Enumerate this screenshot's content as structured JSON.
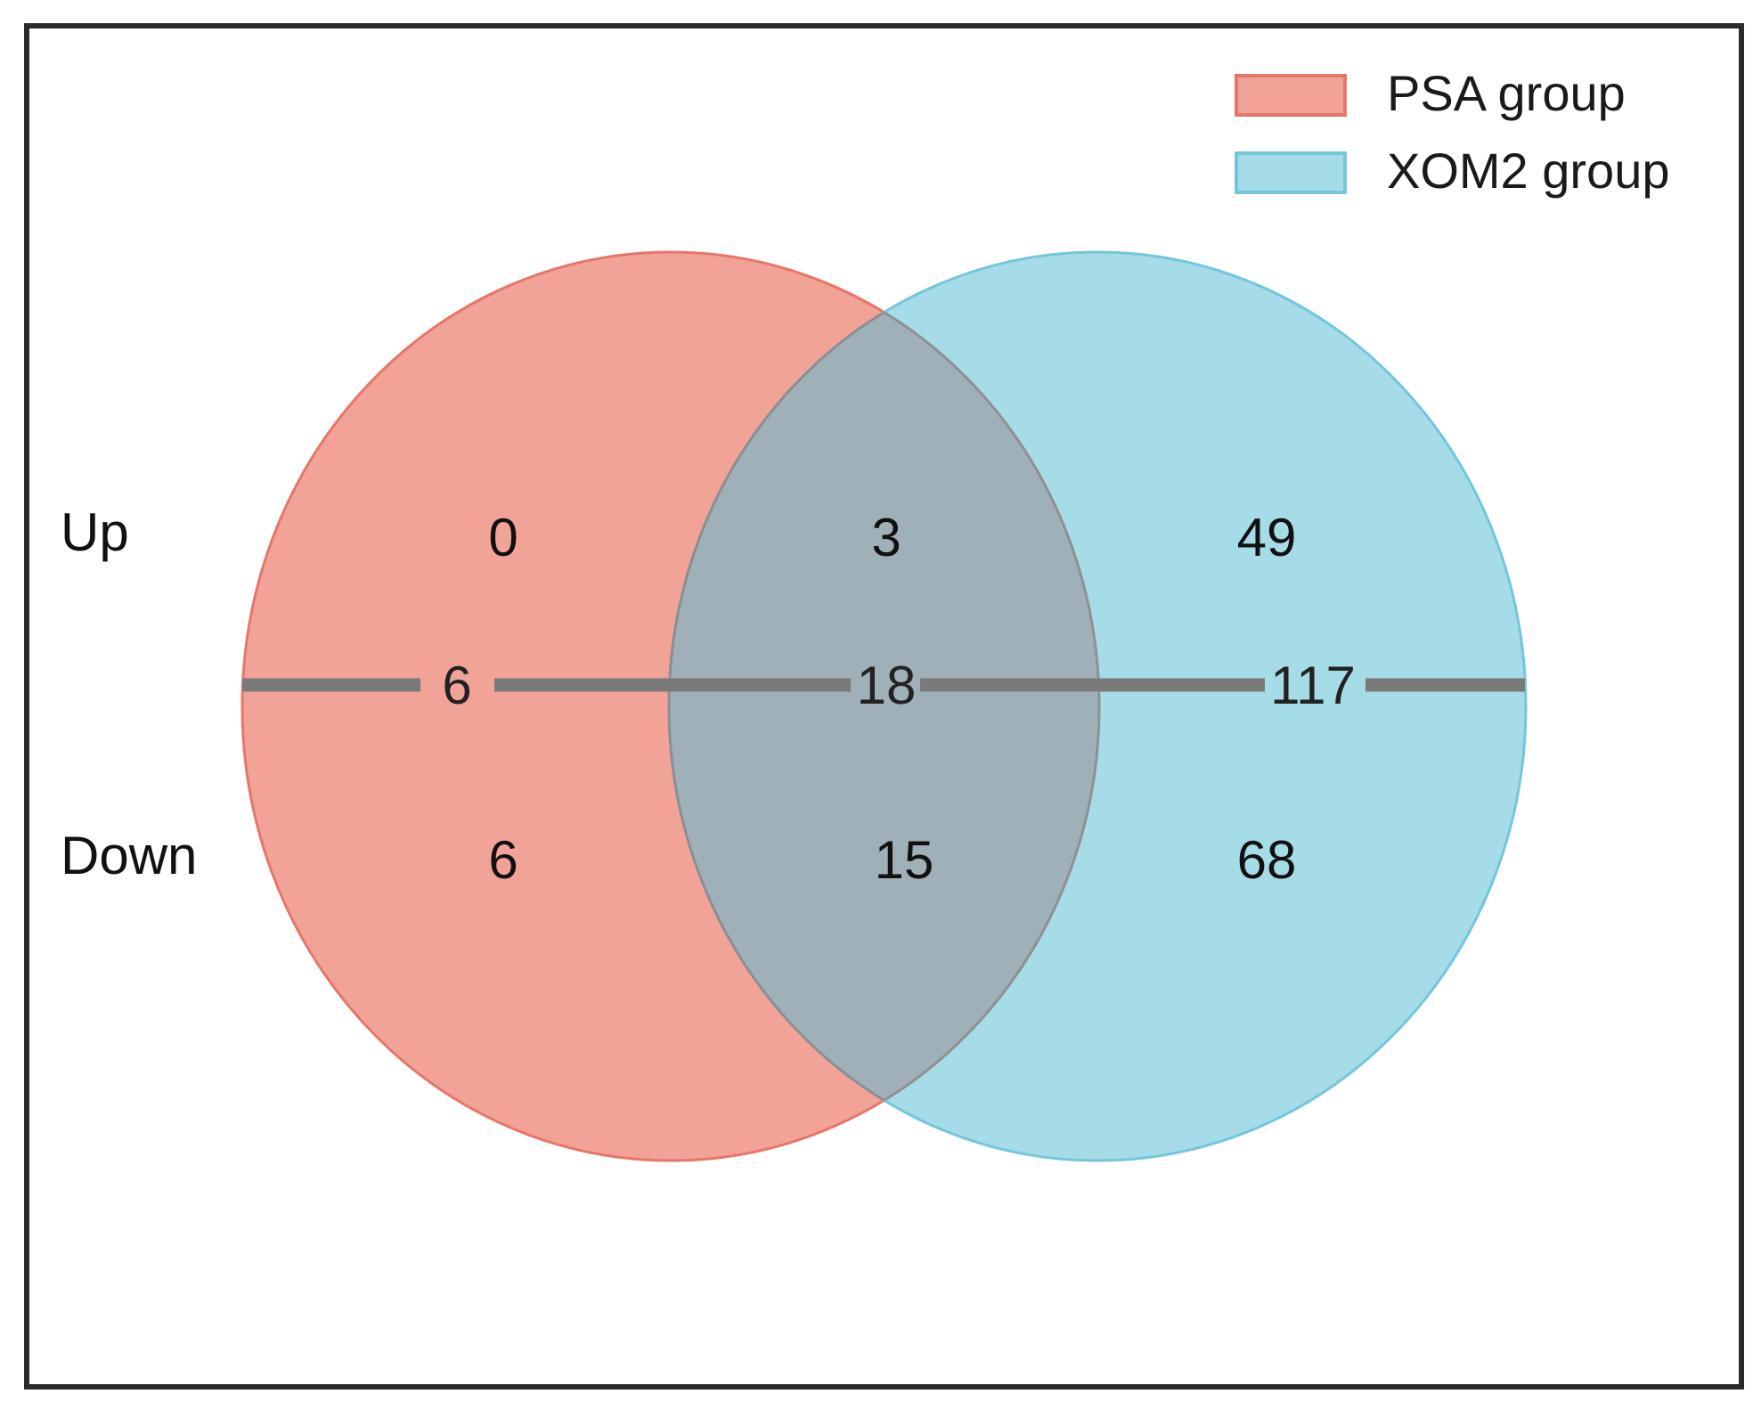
{
  "legend": {
    "items": [
      {
        "label": "PSA group",
        "fill": "#f2a398",
        "stroke": "#e8756a"
      },
      {
        "label": "XOM2 group",
        "fill": "#a6dbe8",
        "stroke": "#74c6dc"
      }
    ]
  },
  "row_labels": {
    "up": "Up",
    "down": "Down"
  },
  "sets": {
    "left": {
      "name": "PSA group",
      "up": "0",
      "total": "6",
      "down": "6"
    },
    "overlap": {
      "up": "3",
      "total": "18",
      "down": "15"
    },
    "right": {
      "name": "XOM2 group",
      "up": "49",
      "total": "117",
      "down": "68"
    }
  },
  "colors": {
    "overlap_fill": "#a0b0b8",
    "divider": "#7a7a7a",
    "border": "#2b2b2b",
    "text": "#111111"
  }
}
